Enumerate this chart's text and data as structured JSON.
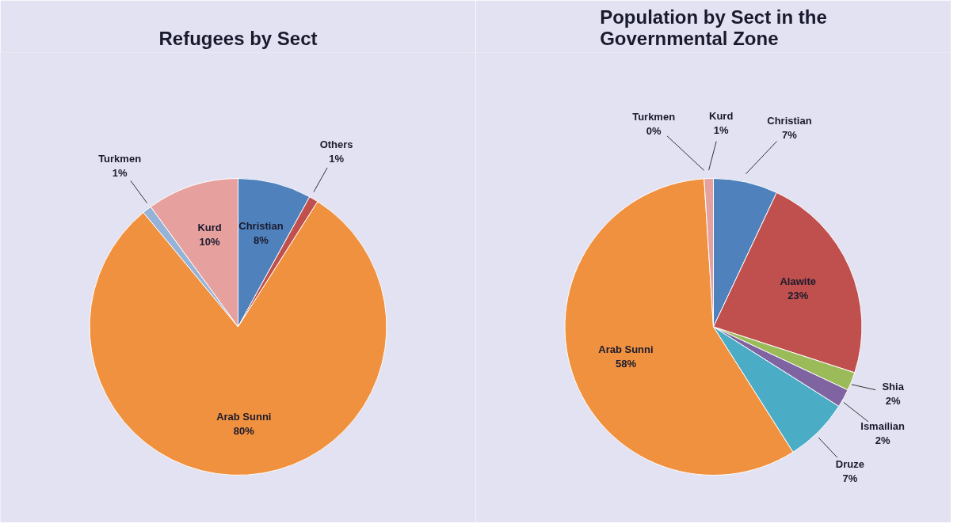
{
  "chart_data": [
    {
      "type": "pie",
      "title": "Refugees by Sect",
      "categories": [
        "Christian",
        "Others",
        "Arab Sunni",
        "Turkmen",
        "Kurd"
      ],
      "values": [
        8,
        1,
        80,
        1,
        10
      ],
      "colors": [
        "#4f81bd",
        "#c0504d",
        "#f0913f",
        "#95b3d7",
        "#e6a09e"
      ],
      "value_labels": [
        "8%",
        "1%",
        "80%",
        "1%",
        "10%"
      ]
    },
    {
      "type": "pie",
      "title": "Population by Sect in the Governmental Zone",
      "categories": [
        "Christian",
        "Alawite",
        "Shia",
        "Ismailian",
        "Druze",
        "Arab Sunni",
        "Turkmen",
        "Kurd"
      ],
      "values": [
        7,
        23,
        2,
        2,
        7,
        58,
        0,
        1
      ],
      "colors": [
        "#4f81bd",
        "#c0504d",
        "#9bbb59",
        "#8064a2",
        "#4bacc6",
        "#f0913f",
        "#95b3d7",
        "#e6a09e"
      ],
      "value_labels": [
        "7%",
        "23%",
        "2%",
        "2%",
        "7%",
        "58%",
        "0%",
        "1%"
      ]
    }
  ]
}
